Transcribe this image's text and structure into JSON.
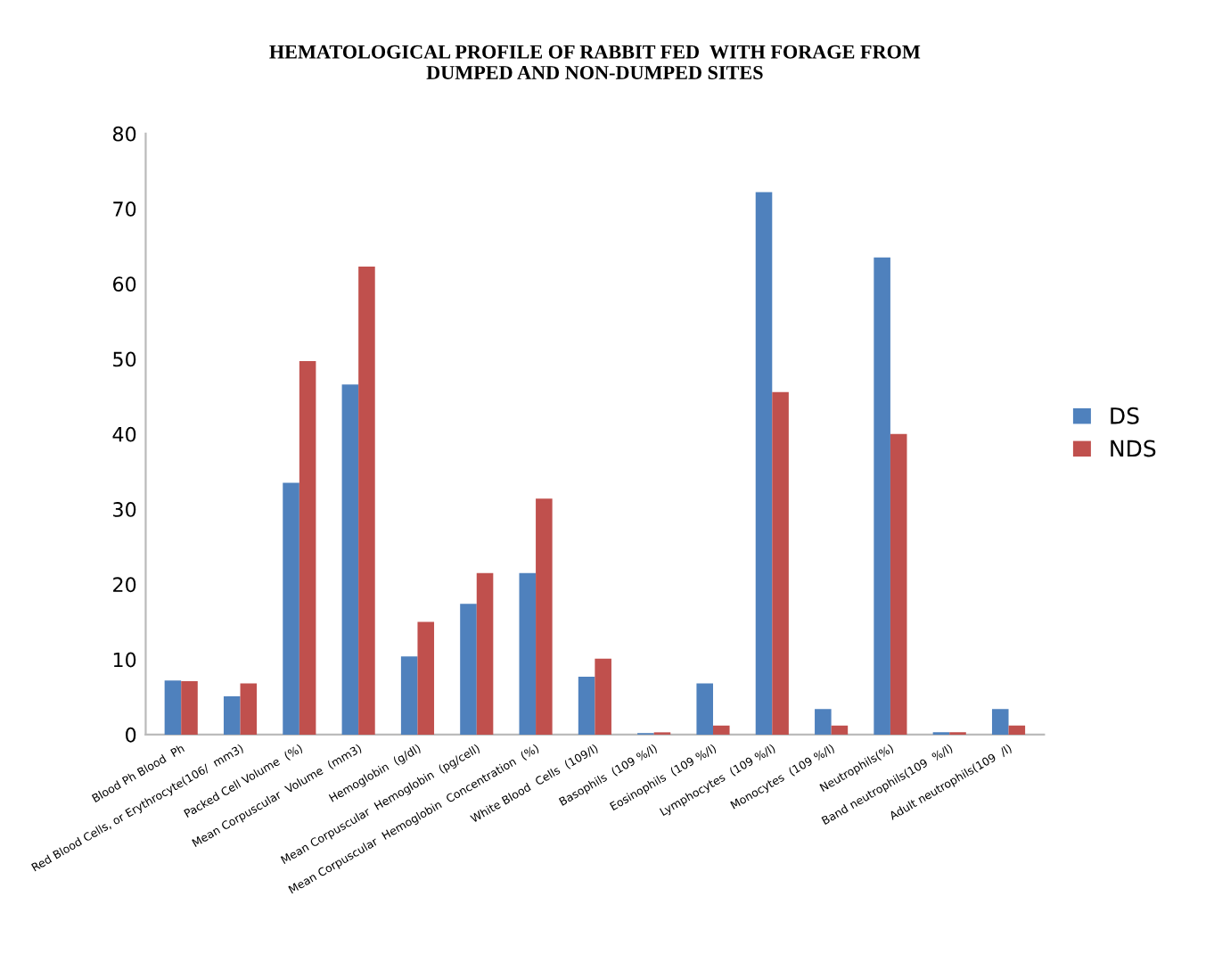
{
  "chart_data": {
    "type": "bar",
    "title": "HEMATOLOGICAL PROFILE OF RABBIT FED  WITH FORAGE FROM\nDUMPED AND NON-DUMPED SITES",
    "categories": [
      "Blood Ph Blood  Ph",
      "Red Blood Cells, or Erythrocyte(106/  mm3)",
      "Packed Cell Volume  (%)",
      "Mean Corpuscular  Volume  (mm3)",
      "Hemoglobin  (g/dl)",
      "Mean Corpuscular  Hemoglobin  (pg/cell)",
      "Mean Corpuscular  Hemoglobin  Concentration  (%)",
      "White Blood  Cells  (109/l)",
      "Basophils  (109 %/l)",
      "Eosinophils  (109 %/l)",
      "Lymphocytes  (109 %/l)",
      "Monocytes  (109 %/l)",
      "Neutrophils(%)",
      "Band neutrophils(109  %/l)",
      "Adult neutrophils(109  /l)"
    ],
    "series": [
      {
        "name": "DS",
        "color": "#4f81bd",
        "values": [
          7.2,
          5.1,
          33.5,
          46.6,
          10.4,
          17.4,
          21.5,
          7.7,
          0.2,
          6.8,
          72.2,
          3.4,
          63.5,
          0.3,
          3.4
        ]
      },
      {
        "name": "NDS",
        "color": "#c0504d",
        "values": [
          7.1,
          6.8,
          49.7,
          62.3,
          15.0,
          21.5,
          31.4,
          10.1,
          0.3,
          1.2,
          45.6,
          1.2,
          40.0,
          0.3,
          1.2
        ]
      }
    ],
    "ylim": [
      0,
      80
    ],
    "yticks": [
      0,
      10,
      20,
      30,
      40,
      50,
      60,
      70,
      80
    ],
    "grid": false,
    "legend": "right"
  }
}
